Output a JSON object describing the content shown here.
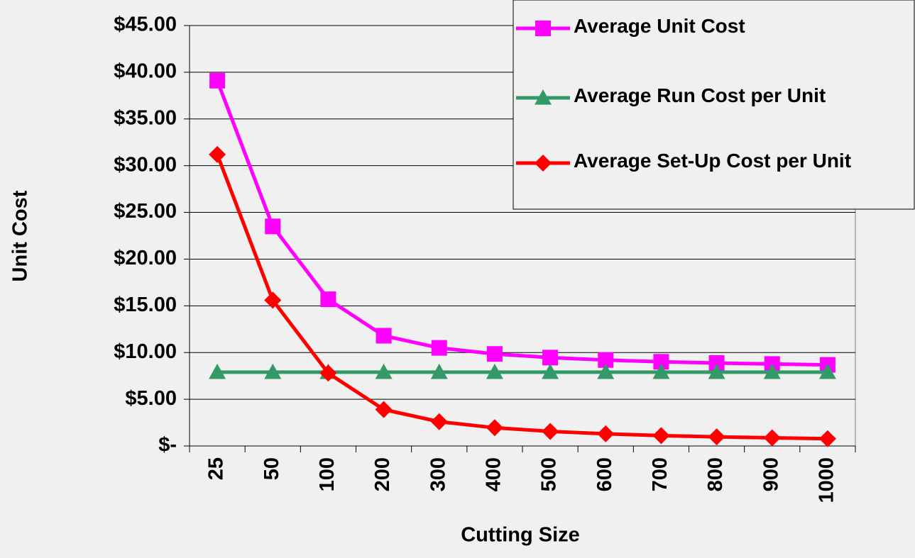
{
  "chart_data": {
    "type": "line",
    "x_label": "Cutting Size",
    "y_label": "Unit Cost",
    "categories": [
      "25",
      "50",
      "100",
      "200",
      "300",
      "400",
      "500",
      "600",
      "700",
      "800",
      "900",
      "1000"
    ],
    "series": [
      {
        "name": "Average Unit Cost",
        "color": "#ff00ff",
        "marker": "square",
        "values": [
          39.1,
          23.5,
          15.7,
          11.8,
          10.5,
          9.85,
          9.46,
          9.2,
          9.01,
          8.88,
          8.77,
          8.68
        ]
      },
      {
        "name": "Average Run Cost per Unit",
        "color": "#339966",
        "marker": "triangle",
        "values": [
          7.9,
          7.9,
          7.9,
          7.9,
          7.9,
          7.9,
          7.9,
          7.9,
          7.9,
          7.9,
          7.9,
          7.9
        ]
      },
      {
        "name": "Average Set-Up Cost per Unit",
        "color": "#ff0000",
        "marker": "diamond",
        "values": [
          31.2,
          15.6,
          7.8,
          3.9,
          2.6,
          1.95,
          1.56,
          1.3,
          1.11,
          0.98,
          0.87,
          0.78
        ]
      }
    ],
    "ylim": [
      0,
      45
    ],
    "yticks": [
      {
        "value": 0,
        "label": "$-"
      },
      {
        "value": 5,
        "label": "$5.00"
      },
      {
        "value": 10,
        "label": "$10.00"
      },
      {
        "value": 15,
        "label": "$15.00"
      },
      {
        "value": 20,
        "label": "$20.00"
      },
      {
        "value": 25,
        "label": "$25.00"
      },
      {
        "value": 30,
        "label": "$30.00"
      },
      {
        "value": 35,
        "label": "$35.00"
      },
      {
        "value": 40,
        "label": "$40.00"
      },
      {
        "value": 45,
        "label": "$45.00"
      }
    ],
    "grid": true,
    "legend": "upper right"
  }
}
